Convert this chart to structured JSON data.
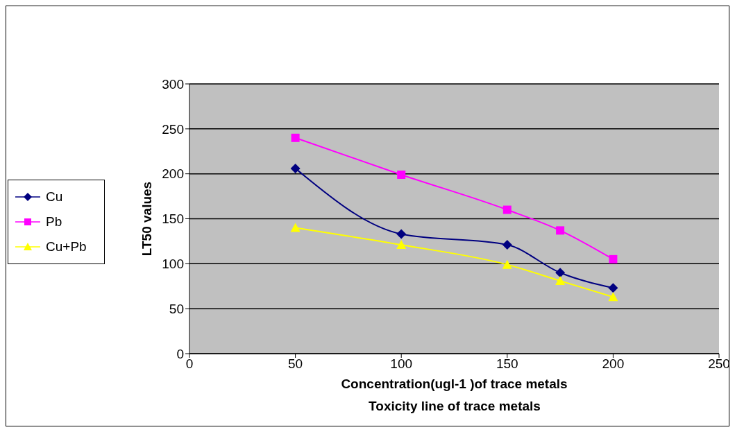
{
  "chart_data": {
    "type": "line",
    "xlabel": "Concentration(ugl-1 )of trace metals",
    "ylabel": "LT50 values",
    "annotations": [
      "Toxicity line of trace metals"
    ],
    "x": [
      50,
      100,
      150,
      175,
      200
    ],
    "series": [
      {
        "name": "Cu",
        "color": "#000080",
        "marker": "diamond",
        "values": [
          206,
          133,
          121,
          90,
          73
        ]
      },
      {
        "name": "Pb",
        "color": "#ff00ff",
        "marker": "square",
        "values": [
          240,
          199,
          160,
          137,
          105
        ]
      },
      {
        "name": "Cu+Pb",
        "color": "#ffff00",
        "marker": "triangle",
        "values": [
          140,
          121,
          99,
          81,
          63
        ]
      }
    ],
    "xlim": [
      0,
      250
    ],
    "xticks": [
      0,
      50,
      100,
      150,
      200,
      250
    ],
    "ylim": [
      0,
      300
    ],
    "yticks": [
      0,
      50,
      100,
      150,
      200,
      250,
      300
    ],
    "grid": "y",
    "legend": "left",
    "line_style": "solid"
  }
}
